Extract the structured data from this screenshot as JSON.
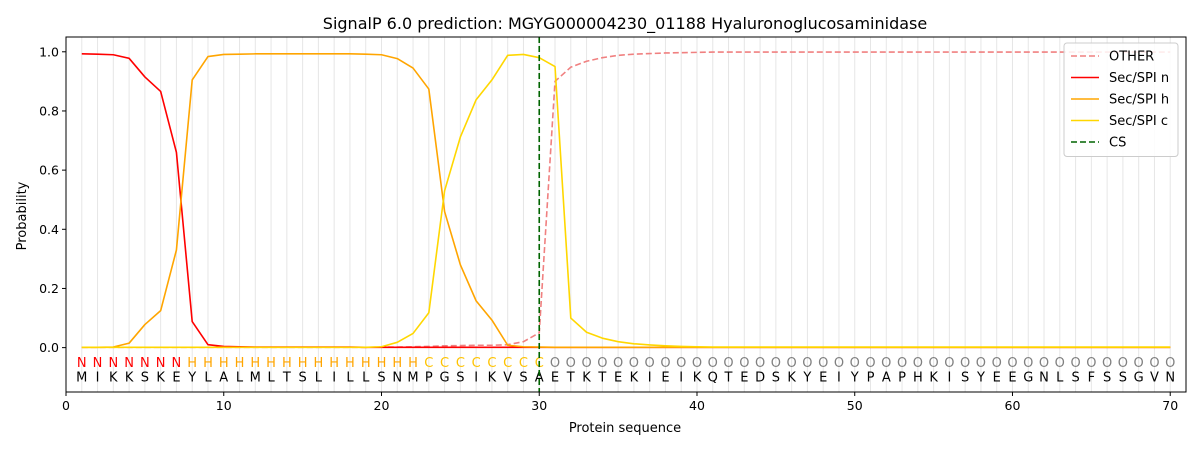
{
  "chart_data": {
    "type": "line",
    "title": "SignalP 6.0 prediction: MGYG000004230_01188 Hyaluronoglucosaminidase",
    "xlabel": "Protein sequence",
    "ylabel": "Probability",
    "xlim": [
      0,
      71
    ],
    "ylim": [
      -0.15,
      1.05
    ],
    "xticks": [
      0,
      10,
      20,
      30,
      40,
      50,
      60,
      70
    ],
    "yticks": [
      0.0,
      0.2,
      0.4,
      0.6,
      0.8,
      1.0
    ],
    "grid": "vertical lines at each residue",
    "legend_position": "top-right",
    "sequence": [
      "M",
      "I",
      "K",
      "K",
      "S",
      "K",
      "E",
      "Y",
      "L",
      "A",
      "L",
      "M",
      "L",
      "T",
      "S",
      "L",
      "I",
      "L",
      "L",
      "S",
      "N",
      "M",
      "P",
      "G",
      "S",
      "I",
      "K",
      "V",
      "S",
      "A",
      "E",
      "T",
      "K",
      "T",
      "E",
      "K",
      "I",
      "E",
      "I",
      "K",
      "Q",
      "T",
      "E",
      "D",
      "S",
      "K",
      "Y",
      "E",
      "I",
      "Y",
      "P",
      "A",
      "P",
      "H",
      "K",
      "I",
      "S",
      "Y",
      "E",
      "E",
      "G",
      "N",
      "L",
      "S",
      "F",
      "S",
      "S",
      "G",
      "V",
      "N"
    ],
    "region_labels": [
      "N",
      "N",
      "N",
      "N",
      "N",
      "N",
      "N",
      "H",
      "H",
      "H",
      "H",
      "H",
      "H",
      "H",
      "H",
      "H",
      "H",
      "H",
      "H",
      "H",
      "H",
      "H",
      "C",
      "C",
      "C",
      "C",
      "C",
      "C",
      "C",
      "C",
      "O",
      "O",
      "O",
      "O",
      "O",
      "O",
      "O",
      "O",
      "O",
      "O",
      "O",
      "O",
      "O",
      "O",
      "O",
      "O",
      "O",
      "O",
      "O",
      "O",
      "O",
      "O",
      "O",
      "O",
      "O",
      "O",
      "O",
      "O",
      "O",
      "O",
      "O",
      "O",
      "O",
      "O",
      "O",
      "O",
      "O",
      "O",
      "O",
      "O"
    ],
    "region_colors": {
      "N": "#ff0000",
      "H": "#ffa500",
      "C": "#ffc300",
      "O": "#808080"
    },
    "series": [
      {
        "name": "OTHER",
        "color": "#f08080",
        "style": "dashed",
        "values": [
          0.001,
          0.001,
          0.001,
          0.001,
          0.001,
          0.001,
          0.001,
          0.001,
          0.001,
          0.001,
          0.001,
          0.001,
          0.001,
          0.001,
          0.001,
          0.001,
          0.001,
          0.001,
          0.001,
          0.002,
          0.002,
          0.003,
          0.004,
          0.006,
          0.007,
          0.008,
          0.008,
          0.01,
          0.02,
          0.05,
          0.9,
          0.948,
          0.968,
          0.98,
          0.988,
          0.992,
          0.994,
          0.996,
          0.997,
          0.998,
          0.999,
          0.999,
          0.999,
          0.999,
          0.999,
          0.999,
          0.999,
          0.999,
          0.999,
          0.999,
          0.999,
          0.999,
          0.999,
          0.999,
          0.999,
          0.999,
          0.999,
          0.999,
          0.999,
          0.999,
          0.999,
          0.999,
          0.999,
          0.999,
          0.999,
          0.999,
          0.999,
          0.999,
          0.999,
          0.999
        ]
      },
      {
        "name": "Sec/SPI n",
        "color": "#ff0000",
        "style": "solid",
        "values": [
          0.993,
          0.992,
          0.99,
          0.978,
          0.915,
          0.866,
          0.66,
          0.088,
          0.01,
          0.004,
          0.003,
          0.002,
          0.002,
          0.002,
          0.002,
          0.002,
          0.002,
          0.002,
          0.001,
          0.001,
          0.001,
          0.001,
          0.001,
          0.001,
          0.001,
          0.001,
          0.001,
          0.001,
          0.001,
          0.001,
          0.001,
          0.001,
          0.001,
          0.001,
          0.001,
          0.001,
          0.001,
          0.001,
          0.001,
          0.001,
          0.001,
          0.001,
          0.001,
          0.001,
          0.001,
          0.001,
          0.001,
          0.001,
          0.001,
          0.001,
          0.001,
          0.001,
          0.001,
          0.001,
          0.001,
          0.001,
          0.001,
          0.001,
          0.001,
          0.001,
          0.001,
          0.001,
          0.001,
          0.001,
          0.001,
          0.001,
          0.001,
          0.001,
          0.001,
          0.001
        ]
      },
      {
        "name": "Sec/SPI h",
        "color": "#ffa500",
        "style": "solid",
        "values": [
          0.001,
          0.001,
          0.002,
          0.015,
          0.078,
          0.125,
          0.33,
          0.905,
          0.984,
          0.991,
          0.992,
          0.993,
          0.993,
          0.993,
          0.993,
          0.993,
          0.993,
          0.993,
          0.992,
          0.99,
          0.977,
          0.945,
          0.874,
          0.46,
          0.28,
          0.158,
          0.093,
          0.008,
          0.003,
          0.002,
          0.001,
          0.001,
          0.001,
          0.001,
          0.001,
          0.001,
          0.001,
          0.001,
          0.001,
          0.001,
          0.001,
          0.001,
          0.001,
          0.001,
          0.001,
          0.001,
          0.001,
          0.001,
          0.001,
          0.001,
          0.001,
          0.001,
          0.001,
          0.001,
          0.001,
          0.001,
          0.001,
          0.001,
          0.001,
          0.001,
          0.001,
          0.001,
          0.001,
          0.001,
          0.001,
          0.001,
          0.001,
          0.001,
          0.001,
          0.001
        ]
      },
      {
        "name": "Sec/SPI c",
        "color": "#ffd700",
        "style": "solid",
        "values": [
          0.001,
          0.001,
          0.001,
          0.001,
          0.001,
          0.001,
          0.001,
          0.001,
          0.001,
          0.001,
          0.001,
          0.001,
          0.001,
          0.001,
          0.001,
          0.001,
          0.001,
          0.001,
          0.001,
          0.003,
          0.018,
          0.048,
          0.118,
          0.53,
          0.712,
          0.838,
          0.905,
          0.988,
          0.991,
          0.98,
          0.95,
          0.1,
          0.052,
          0.032,
          0.02,
          0.013,
          0.009,
          0.006,
          0.004,
          0.003,
          0.002,
          0.002,
          0.002,
          0.002,
          0.002,
          0.002,
          0.002,
          0.002,
          0.002,
          0.002,
          0.002,
          0.002,
          0.002,
          0.002,
          0.002,
          0.002,
          0.002,
          0.002,
          0.002,
          0.002,
          0.002,
          0.002,
          0.002,
          0.002,
          0.002,
          0.002,
          0.002,
          0.002,
          0.002,
          0.002
        ]
      }
    ],
    "cs_line": {
      "name": "CS",
      "x": 30,
      "color": "#006400",
      "style": "dashed"
    }
  }
}
